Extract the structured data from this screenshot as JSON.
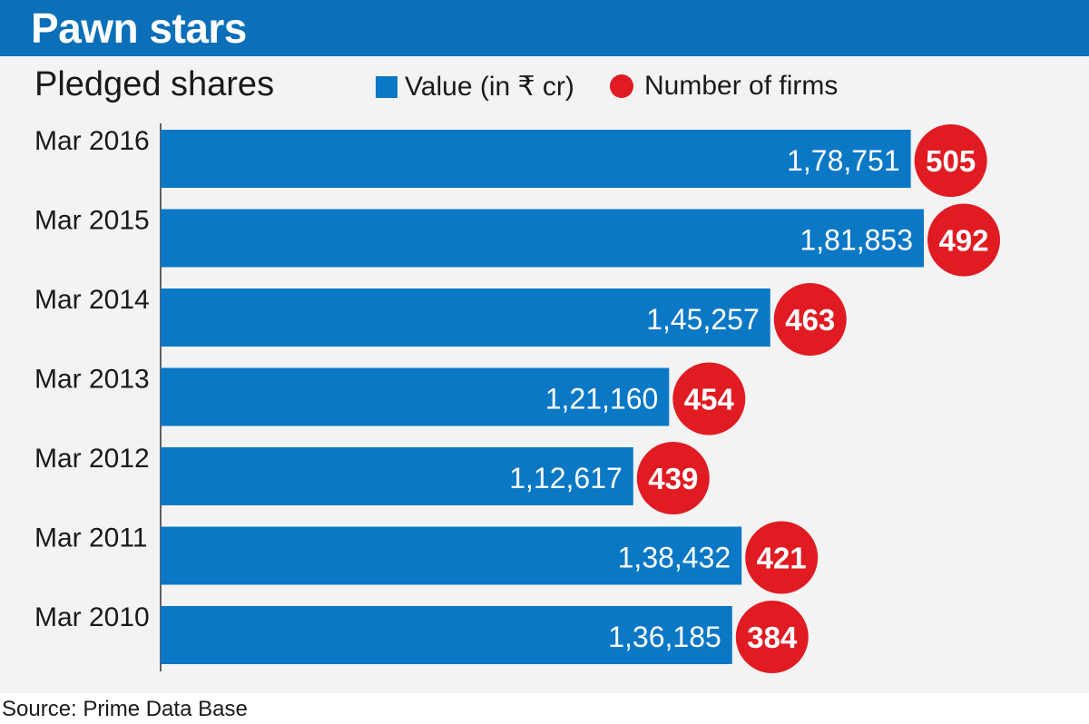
{
  "header": {
    "title": "Pawn stars"
  },
  "subtitle": "Pledged shares",
  "legend": {
    "value_label": "Value (in ₹ cr)",
    "firms_label": "Number of firms"
  },
  "colors": {
    "header_bg": "#0b6fb9",
    "bar": "#0b78c6",
    "dot": "#e11b22",
    "panel_bg": "#f3f3f3"
  },
  "chart_data": {
    "type": "bar",
    "orientation": "horizontal",
    "title": "Pledged shares",
    "categories": [
      "Mar 2016",
      "Mar 2015",
      "Mar 2014",
      "Mar 2013",
      "Mar 2012",
      "Mar 2011",
      "Mar 2010"
    ],
    "series": [
      {
        "name": "Value (in ₹ cr)",
        "values": [
          178751,
          181853,
          145257,
          121160,
          112617,
          138432,
          136185
        ],
        "labels": [
          "1,78,751",
          "1,81,853",
          "1,45,257",
          "1,21,160",
          "1,12,617",
          "1,38,432",
          "1,36,185"
        ]
      },
      {
        "name": "Number of firms",
        "values": [
          505,
          492,
          463,
          454,
          439,
          421,
          384
        ],
        "labels": [
          "505",
          "492",
          "463",
          "454",
          "439",
          "421",
          "384"
        ]
      }
    ],
    "legend_position": "top",
    "grid": false
  },
  "source": "Source: Prime Data Base"
}
